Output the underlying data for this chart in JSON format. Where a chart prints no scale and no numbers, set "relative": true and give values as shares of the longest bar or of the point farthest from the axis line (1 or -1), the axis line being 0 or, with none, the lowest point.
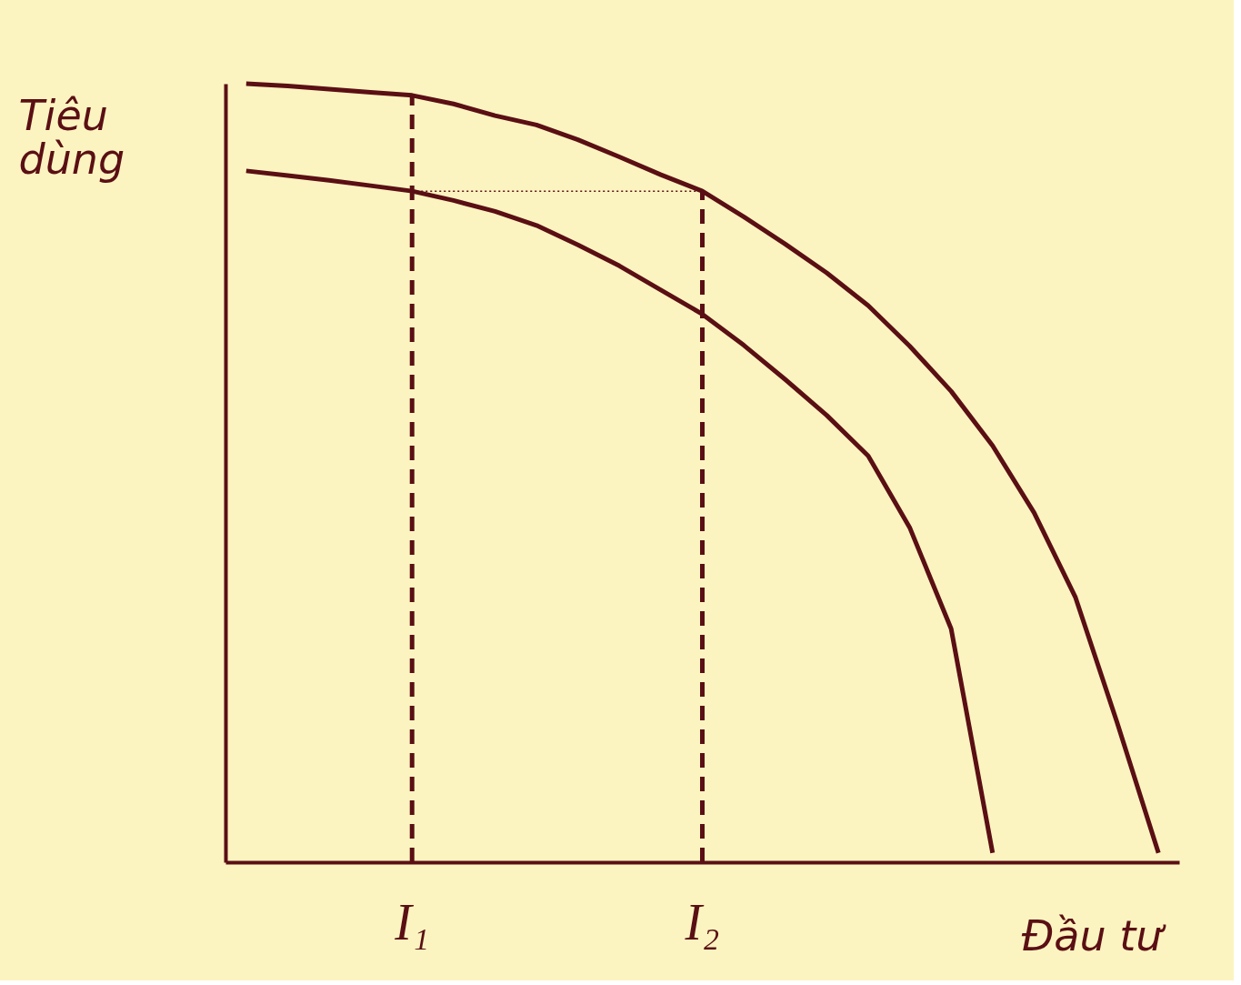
{
  "chart_data": {
    "type": "line",
    "relative": true,
    "xlabel": "Đầu tư",
    "ylabel": "Tiêu dùng",
    "categories": [
      null,
      null,
      null,
      null,
      "I₁",
      null,
      null,
      null,
      null,
      null,
      null,
      "I₂",
      null,
      null,
      null,
      null,
      null,
      null,
      null,
      null,
      null,
      null,
      null
    ],
    "grid": false,
    "marker": "none",
    "series": [
      {
        "color": "#5a0f14",
        "line_style": "solid",
        "values": [
          1.0,
          0.997,
          0.993,
          0.989,
          0.985,
          0.974,
          0.959,
          0.947,
          0.928,
          0.906,
          0.883,
          0.862,
          0.829,
          0.794,
          0.757,
          0.715,
          0.663,
          0.605,
          0.535,
          0.449,
          0.34,
          0.18,
          0.012
        ]
      },
      {
        "color": "#5a0f14",
        "line_style": "solid",
        "values": [
          0.888,
          0.882,
          0.876,
          0.869,
          0.862,
          0.85,
          0.836,
          0.818,
          0.793,
          0.766,
          0.735,
          0.704,
          0.664,
          0.62,
          0.574,
          0.522,
          0.43,
          0.3,
          0.012,
          null,
          null,
          null,
          null
        ]
      },
      {
        "color": "#5a0f14",
        "line_style": "dotted",
        "values": [
          null,
          null,
          null,
          null,
          0.862,
          null,
          null,
          null,
          null,
          null,
          null,
          0.862,
          null,
          null,
          null,
          null,
          null,
          null,
          null,
          null,
          null,
          null,
          null
        ]
      }
    ],
    "ref_lines": [
      {
        "axis": "x",
        "value": "I₁",
        "line_style": "dashed",
        "color": "#5a0f14"
      },
      {
        "axis": "x",
        "value": "I₂",
        "line_style": "dashed",
        "color": "#5a0f14"
      }
    ]
  }
}
